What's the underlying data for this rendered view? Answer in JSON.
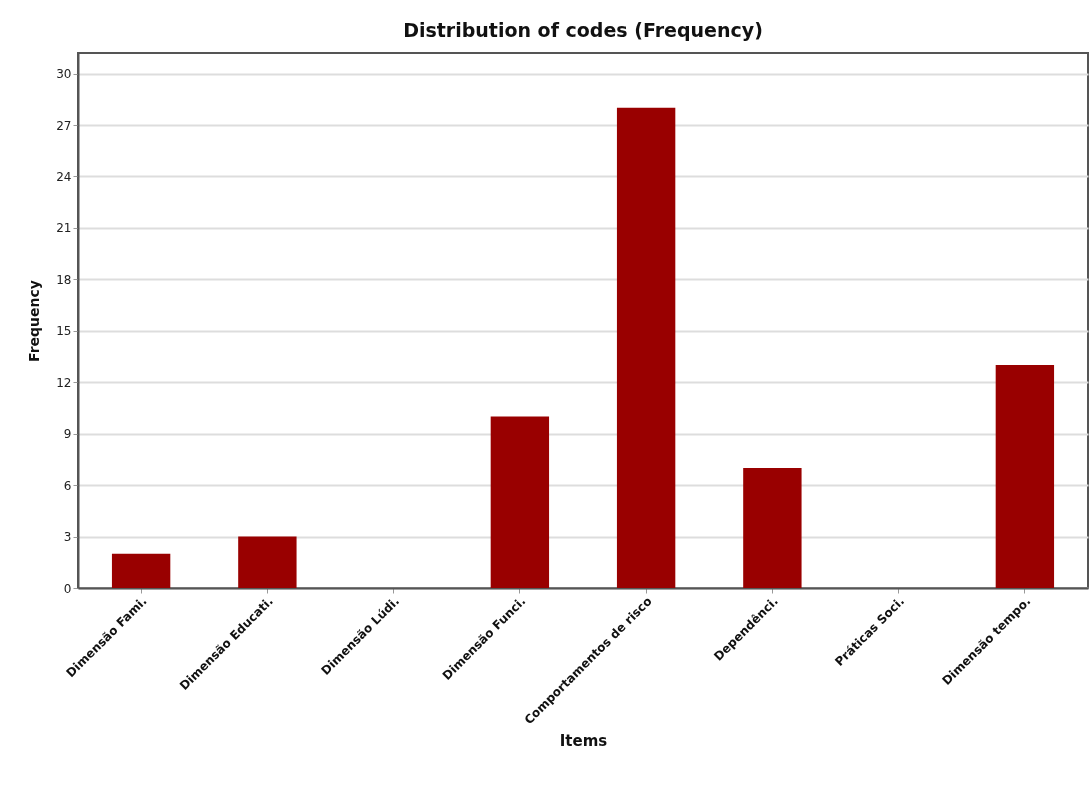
{
  "chart_data": {
    "type": "bar",
    "title": "Distribution of codes (Frequency)",
    "xlabel": "Items",
    "ylabel": "Frequency",
    "categories": [
      "Dimensão Fami.",
      "Dimensão Educati.",
      "Dimensão Lúdi.",
      "Dimensão Funci.",
      "Comportamentos de risco",
      "Dependênci.",
      "Práticas Soci.",
      "Dimensão tempo."
    ],
    "values": [
      2,
      3,
      0,
      10,
      28,
      7,
      0,
      13
    ],
    "color": "#990000",
    "ylim": [
      0,
      31.2
    ],
    "yticks": [
      0,
      3,
      6,
      9,
      12,
      15,
      18,
      21,
      24,
      27,
      30
    ],
    "grid": "y"
  }
}
